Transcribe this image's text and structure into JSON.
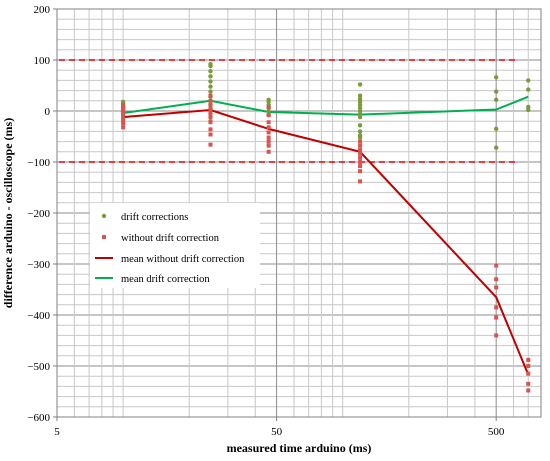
{
  "chart_data": {
    "type": "scatter",
    "xscale": "log",
    "xlim": [
      5,
      800
    ],
    "ylim": [
      -600,
      200
    ],
    "xlabel": "measured  time  arduino (ms)",
    "ylabel": "difference arduino - oscilloscope  (ms)",
    "x_ticks": [
      5,
      50,
      500
    ],
    "x_tick_labels": [
      "5",
      "50",
      "500"
    ],
    "y_ticks": [
      200,
      100,
      0,
      -100,
      -200,
      -300,
      -400,
      -500,
      -600
    ],
    "y_tick_labels": [
      "200",
      "100",
      "0",
      "−100",
      "−200",
      "−300",
      "−400",
      "−500",
      "−600"
    ],
    "grid": "on",
    "reference_lines": [
      100,
      -100
    ],
    "legend_position": "left-middle",
    "series": [
      {
        "name": "drift corrections",
        "kind": "points",
        "marker": "circle",
        "color": "#7a9a3c",
        "points": [
          [
            10,
            18
          ],
          [
            10,
            14
          ],
          [
            10,
            10
          ],
          [
            10,
            6
          ],
          [
            10,
            2
          ],
          [
            10,
            -2
          ],
          [
            25,
            92
          ],
          [
            25,
            88
          ],
          [
            25,
            78
          ],
          [
            25,
            68
          ],
          [
            25,
            58
          ],
          [
            25,
            48
          ],
          [
            25,
            38
          ],
          [
            25,
            28
          ],
          [
            25,
            20
          ],
          [
            25,
            12
          ],
          [
            25,
            4
          ],
          [
            25,
            -5
          ],
          [
            25,
            -20
          ],
          [
            46,
            22
          ],
          [
            46,
            18
          ],
          [
            46,
            12
          ],
          [
            46,
            6
          ],
          [
            46,
            0
          ],
          [
            46,
            -8
          ],
          [
            120,
            52
          ],
          [
            120,
            30
          ],
          [
            120,
            24
          ],
          [
            120,
            18
          ],
          [
            120,
            12
          ],
          [
            120,
            6
          ],
          [
            120,
            0
          ],
          [
            120,
            -6
          ],
          [
            120,
            -12
          ],
          [
            120,
            -28
          ],
          [
            120,
            -40
          ],
          [
            120,
            -48
          ],
          [
            120,
            -52
          ],
          [
            500,
            66
          ],
          [
            500,
            38
          ],
          [
            500,
            22
          ],
          [
            500,
            -35
          ],
          [
            500,
            -72
          ],
          [
            700,
            60
          ],
          [
            700,
            42
          ],
          [
            700,
            8
          ],
          [
            700,
            2
          ]
        ]
      },
      {
        "name": "without drift correction",
        "kind": "points",
        "marker": "square",
        "color": "#d9534f",
        "points": [
          [
            10,
            12
          ],
          [
            10,
            6
          ],
          [
            10,
            0
          ],
          [
            10,
            -6
          ],
          [
            10,
            -12
          ],
          [
            10,
            -18
          ],
          [
            10,
            -24
          ],
          [
            10,
            -32
          ],
          [
            25,
            30
          ],
          [
            25,
            20
          ],
          [
            25,
            12
          ],
          [
            25,
            4
          ],
          [
            25,
            -4
          ],
          [
            25,
            -12
          ],
          [
            25,
            -22
          ],
          [
            25,
            -36
          ],
          [
            25,
            -46
          ],
          [
            25,
            -66
          ],
          [
            46,
            8
          ],
          [
            46,
            -8
          ],
          [
            46,
            -22
          ],
          [
            46,
            -32
          ],
          [
            46,
            -42
          ],
          [
            46,
            -52
          ],
          [
            46,
            -60
          ],
          [
            46,
            -68
          ],
          [
            46,
            -80
          ],
          [
            120,
            -60
          ],
          [
            120,
            -68
          ],
          [
            120,
            -76
          ],
          [
            120,
            -84
          ],
          [
            120,
            -92
          ],
          [
            120,
            -100
          ],
          [
            120,
            -108
          ],
          [
            120,
            -118
          ],
          [
            120,
            -138
          ],
          [
            500,
            -303
          ],
          [
            500,
            -330
          ],
          [
            500,
            -346
          ],
          [
            500,
            -385
          ],
          [
            500,
            -405
          ],
          [
            500,
            -440
          ],
          [
            700,
            -488
          ],
          [
            700,
            -500
          ],
          [
            700,
            -515
          ],
          [
            700,
            -535
          ],
          [
            700,
            -548
          ]
        ]
      },
      {
        "name": "mean without drift correction",
        "kind": "line",
        "color": "#c00000",
        "points": [
          [
            10,
            -12
          ],
          [
            25,
            2
          ],
          [
            46,
            -35
          ],
          [
            120,
            -80
          ],
          [
            500,
            -365
          ],
          [
            700,
            -517
          ]
        ]
      },
      {
        "name": "mean drift correction",
        "kind": "line",
        "color": "#00b050",
        "points": [
          [
            10,
            -4
          ],
          [
            25,
            20
          ],
          [
            46,
            -2
          ],
          [
            120,
            -7
          ],
          [
            500,
            3
          ],
          [
            700,
            28
          ]
        ]
      }
    ]
  }
}
